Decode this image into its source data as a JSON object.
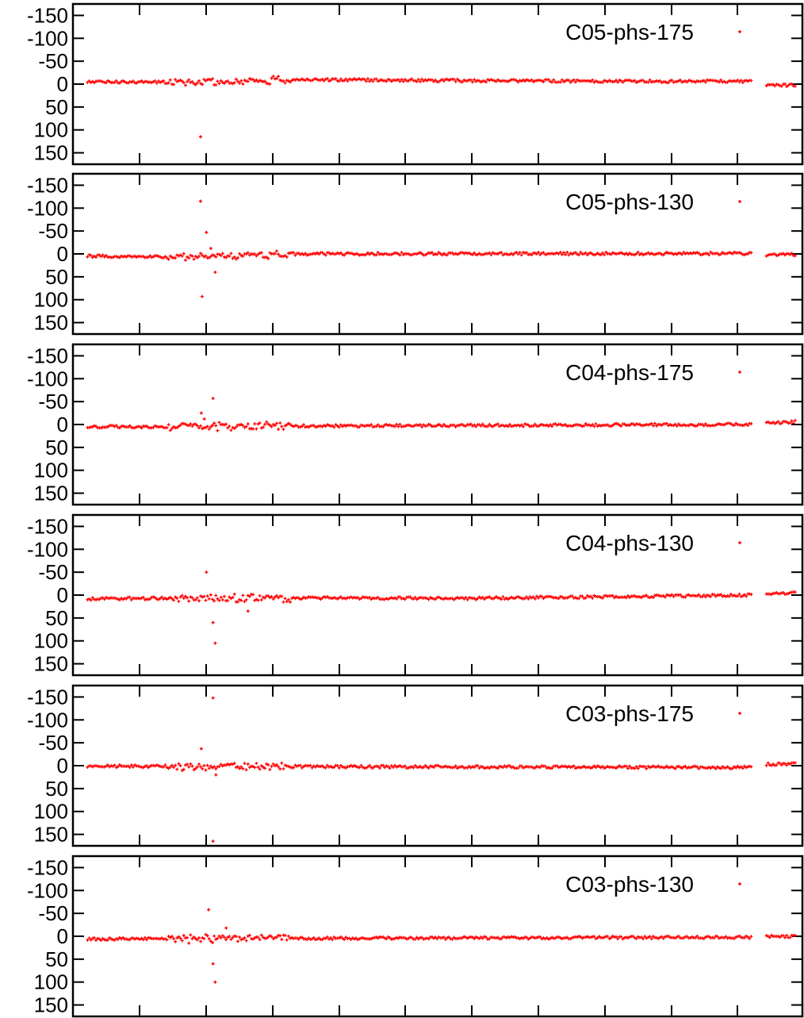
{
  "chart_data": [
    {
      "type": "scatter",
      "legend": "C05-phs-175",
      "legend_placement": "top-right",
      "marker_color": "#ff0000",
      "y_axis_reversed": true,
      "ylim": [
        -175,
        175
      ],
      "y_ticks": [
        "-150",
        "-100",
        "-50",
        "0",
        "50",
        "100",
        "150"
      ],
      "grid": false,
      "outliers": [
        {
          "x": 0.175,
          "y": 115
        }
      ],
      "baseline_segments": [
        {
          "x0": 0.02,
          "y0": -5,
          "x1": 0.2,
          "y1": -4
        },
        {
          "x0": 0.2,
          "y0": -4,
          "x1": 0.28,
          "y1": -10
        },
        {
          "x0": 0.28,
          "y0": -10,
          "x1": 0.6,
          "y1": -7
        },
        {
          "x0": 0.6,
          "y0": -7,
          "x1": 0.93,
          "y1": -6
        },
        {
          "x0": 0.95,
          "y0": 3,
          "x1": 0.99,
          "y1": 2
        }
      ]
    },
    {
      "type": "scatter",
      "legend": "C05-phs-130",
      "legend_placement": "top-right",
      "marker_color": "#ff0000",
      "y_axis_reversed": true,
      "ylim": [
        -175,
        175
      ],
      "y_ticks": [
        "-150",
        "-100",
        "-50",
        "0",
        "50",
        "100",
        "150"
      ],
      "grid": false,
      "outliers": [
        {
          "x": 0.175,
          "y": -115
        },
        {
          "x": 0.183,
          "y": -47
        },
        {
          "x": 0.189,
          "y": -12
        },
        {
          "x": 0.177,
          "y": 93
        },
        {
          "x": 0.195,
          "y": 40
        }
      ],
      "baseline_segments": [
        {
          "x0": 0.02,
          "y0": 5,
          "x1": 0.15,
          "y1": 6
        },
        {
          "x0": 0.15,
          "y0": 6,
          "x1": 0.3,
          "y1": 0
        },
        {
          "x0": 0.3,
          "y0": 0,
          "x1": 0.93,
          "y1": -1
        },
        {
          "x0": 0.95,
          "y0": 2,
          "x1": 0.99,
          "y1": 1
        }
      ]
    },
    {
      "type": "scatter",
      "legend": "C04-phs-175",
      "legend_placement": "top-right",
      "marker_color": "#ff0000",
      "y_axis_reversed": true,
      "ylim": [
        -175,
        175
      ],
      "y_ticks": [
        "-150",
        "-100",
        "-50",
        "0",
        "50",
        "100",
        "150"
      ],
      "grid": false,
      "outliers": [
        {
          "x": 0.192,
          "y": -57
        },
        {
          "x": 0.176,
          "y": -25
        },
        {
          "x": 0.18,
          "y": -12
        }
      ],
      "baseline_segments": [
        {
          "x0": 0.02,
          "y0": 5,
          "x1": 0.93,
          "y1": 0
        },
        {
          "x0": 0.95,
          "y0": -3,
          "x1": 0.99,
          "y1": -6
        }
      ]
    },
    {
      "type": "scatter",
      "legend": "C04-phs-130",
      "legend_placement": "top-right",
      "marker_color": "#ff0000",
      "y_axis_reversed": true,
      "ylim": [
        -175,
        175
      ],
      "y_ticks": [
        "-150",
        "-100",
        "-50",
        "0",
        "50",
        "100",
        "150"
      ],
      "grid": false,
      "outliers": [
        {
          "x": 0.183,
          "y": -50
        },
        {
          "x": 0.192,
          "y": 60
        },
        {
          "x": 0.195,
          "y": 105
        },
        {
          "x": 0.24,
          "y": 35
        }
      ],
      "baseline_segments": [
        {
          "x0": 0.02,
          "y0": 8,
          "x1": 0.2,
          "y1": 6
        },
        {
          "x0": 0.2,
          "y0": 6,
          "x1": 0.55,
          "y1": 7
        },
        {
          "x0": 0.55,
          "y0": 7,
          "x1": 0.93,
          "y1": 0
        },
        {
          "x0": 0.95,
          "y0": -3,
          "x1": 0.99,
          "y1": -4
        }
      ]
    },
    {
      "type": "scatter",
      "legend": "C03-phs-175",
      "legend_placement": "top-right",
      "marker_color": "#ff0000",
      "y_axis_reversed": true,
      "ylim": [
        -175,
        175
      ],
      "y_ticks": [
        "-150",
        "-100",
        "-50",
        "0",
        "50",
        "100",
        "150"
      ],
      "grid": false,
      "outliers": [
        {
          "x": 0.192,
          "y": -148
        },
        {
          "x": 0.176,
          "y": -37
        },
        {
          "x": 0.192,
          "y": 165
        },
        {
          "x": 0.196,
          "y": 20
        }
      ],
      "baseline_segments": [
        {
          "x0": 0.02,
          "y0": 1,
          "x1": 0.3,
          "y1": 2
        },
        {
          "x0": 0.3,
          "y0": 2,
          "x1": 0.6,
          "y1": 3
        },
        {
          "x0": 0.6,
          "y0": 3,
          "x1": 0.93,
          "y1": 4
        },
        {
          "x0": 0.95,
          "y0": -3,
          "x1": 0.99,
          "y1": -4
        }
      ]
    },
    {
      "type": "scatter",
      "legend": "C03-phs-130",
      "legend_placement": "top-right",
      "marker_color": "#ff0000",
      "y_axis_reversed": true,
      "ylim": [
        -175,
        175
      ],
      "y_ticks": [
        "-150",
        "-100",
        "-50",
        "0",
        "50",
        "100",
        "150"
      ],
      "grid": false,
      "outliers": [
        {
          "x": 0.186,
          "y": -58
        },
        {
          "x": 0.192,
          "y": 60
        },
        {
          "x": 0.195,
          "y": 100
        },
        {
          "x": 0.21,
          "y": -18
        }
      ],
      "baseline_segments": [
        {
          "x0": 0.02,
          "y0": 6,
          "x1": 0.93,
          "y1": 2
        },
        {
          "x0": 0.95,
          "y0": 0,
          "x1": 0.99,
          "y1": 0
        }
      ]
    }
  ]
}
